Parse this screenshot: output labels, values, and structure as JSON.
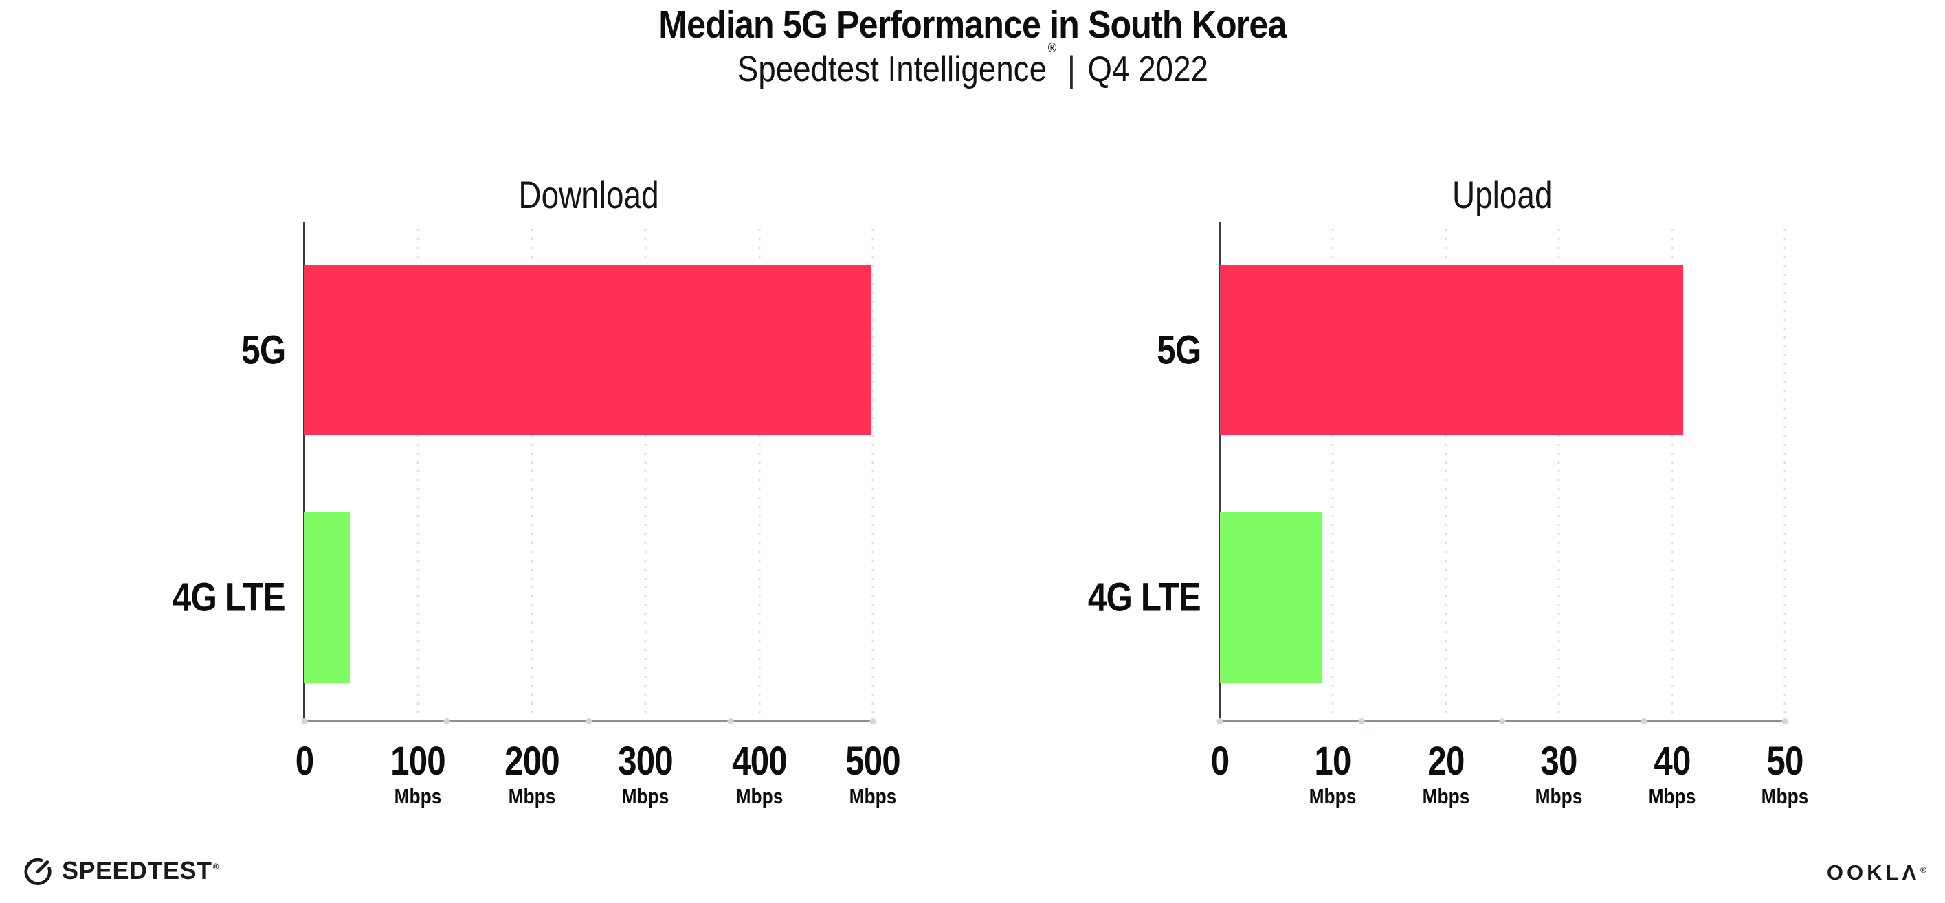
{
  "header": {
    "title": "Median 5G Performance in South Korea",
    "subtitle_brand": "Speedtest Intelligence",
    "subtitle_reg": "®",
    "subtitle_sep": "|",
    "subtitle_period": "Q4 2022"
  },
  "colors": {
    "bar_5g": "#FF3056",
    "bar_4g_lte": "#7FFB64",
    "axis": "#3c3c44",
    "baseline": "#8e8e96",
    "gridline": "#dedfee",
    "grid_dot": "#cfd3e4",
    "text": "#0d0d10",
    "background": "#ffffff"
  },
  "chart_data": [
    {
      "type": "bar",
      "orientation": "horizontal",
      "title": "Download",
      "categories": [
        "5G",
        "4G LTE"
      ],
      "values": [
        498,
        40
      ],
      "unit": "Mbps",
      "xlim": [
        0,
        500
      ],
      "xticks": [
        0,
        100,
        200,
        300,
        400,
        500
      ],
      "bar_colors": [
        "#FF3056",
        "#7FFB64"
      ],
      "grid": "dotted-vertical",
      "legend": "none"
    },
    {
      "type": "bar",
      "orientation": "horizontal",
      "title": "Upload",
      "categories": [
        "5G",
        "4G LTE"
      ],
      "values": [
        41,
        9
      ],
      "unit": "Mbps",
      "xlim": [
        0,
        50
      ],
      "xticks": [
        0,
        10,
        20,
        30,
        40,
        50
      ],
      "bar_colors": [
        "#FF3056",
        "#7FFB64"
      ],
      "grid": "dotted-vertical",
      "legend": "none"
    }
  ],
  "footer": {
    "speedtest_label": "SPEEDTEST",
    "speedtest_reg": "®",
    "ookla_label": "OOKLΛ",
    "ookla_reg": "®"
  }
}
